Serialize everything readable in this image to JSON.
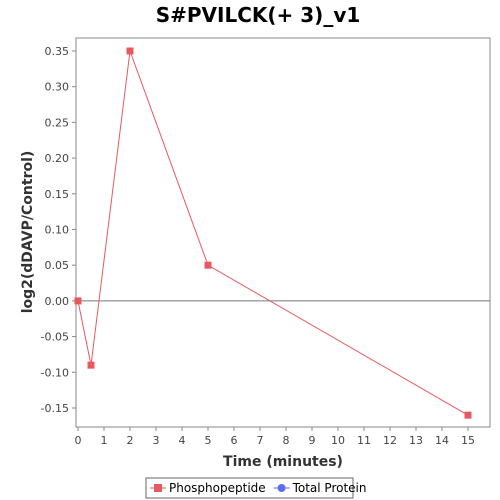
{
  "chart_data": {
    "type": "line",
    "title": "S#PVILCK(+ 3)_v1",
    "xlabel": "Time (minutes)",
    "ylabel": "log2(dDAVP/Control)",
    "xlim": [
      0,
      15.5
    ],
    "ylim": [
      -0.185,
      0.37
    ],
    "x_ticks": [
      0,
      1,
      2,
      3,
      4,
      5,
      6,
      7,
      8,
      9,
      10,
      11,
      12,
      13,
      14,
      15
    ],
    "x_tick_labels": [
      "0",
      "1",
      "2",
      "3",
      "4",
      "5",
      "6",
      "7",
      "8",
      "9",
      "10",
      "11",
      "12",
      "13",
      "14",
      "15"
    ],
    "y_ticks": [
      -0.15,
      -0.1,
      -0.05,
      0.0,
      0.05,
      0.1,
      0.15,
      0.2,
      0.25,
      0.3,
      0.35
    ],
    "y_tick_labels": [
      "-0.15",
      "-0.10",
      "-0.05",
      "0.00",
      "0.05",
      "0.10",
      "0.15",
      "0.20",
      "0.25",
      "0.30",
      "0.35"
    ],
    "grid": false,
    "zero_line": true,
    "legend_position": "bottom",
    "series": [
      {
        "name": "Phosphopeptide",
        "color": "#e8595e",
        "marker": "square",
        "x": [
          0,
          0.5,
          2,
          5,
          15
        ],
        "y": [
          0.0,
          -0.09,
          0.35,
          0.05,
          -0.16
        ]
      },
      {
        "name": "Total Protein",
        "color": "#5b6ee8",
        "marker": "circle",
        "x": [],
        "y": []
      }
    ]
  }
}
